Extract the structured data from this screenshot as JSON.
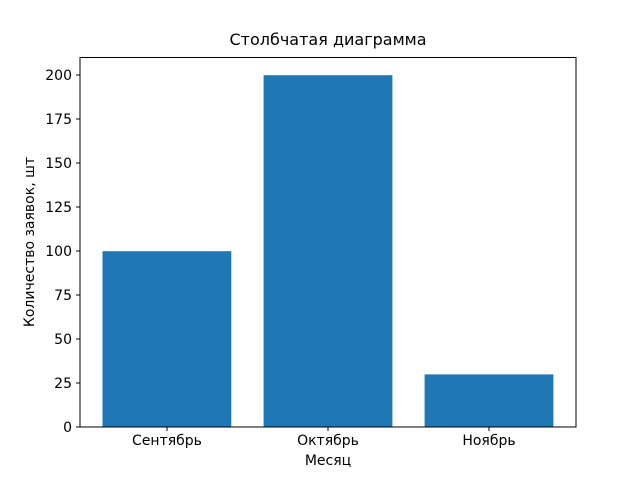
{
  "chart_data": {
    "type": "bar",
    "title": "Столбчатая диаграмма",
    "categories": [
      "Сентябрь",
      "Октябрь",
      "Ноябрь"
    ],
    "values": [
      100,
      200,
      30
    ],
    "xlabel": "Месяц",
    "ylabel": "Количество заявок, шт",
    "ylim": [
      0,
      210
    ],
    "yticks": [
      0,
      25,
      50,
      75,
      100,
      125,
      150,
      175,
      200
    ],
    "bar_color": "#1f77b4",
    "axis_color": "#000000",
    "background_color": "#ffffff",
    "grid": false,
    "legend": "none",
    "bar_width_fraction": 0.8
  }
}
